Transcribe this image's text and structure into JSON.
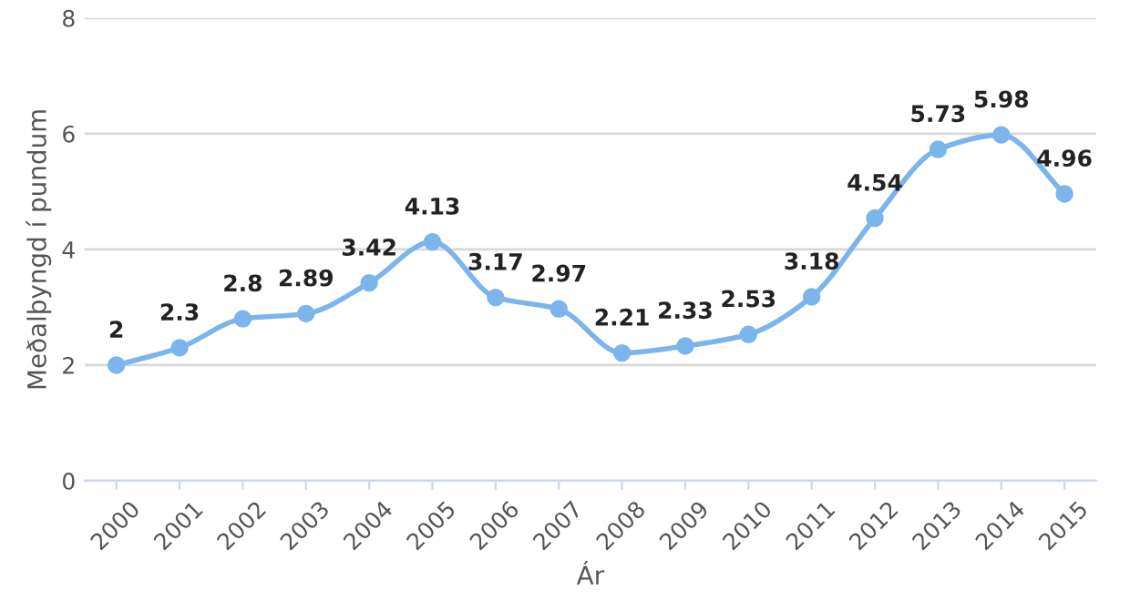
{
  "chart_data": {
    "type": "line",
    "xlabel": "Ár",
    "ylabel": "Meðalþyngd í pundum",
    "categories": [
      "2000",
      "2001",
      "2002",
      "2003",
      "2004",
      "2005",
      "2006",
      "2007",
      "2008",
      "2009",
      "2010",
      "2011",
      "2012",
      "2013",
      "2014",
      "2015"
    ],
    "series": [
      {
        "color": "#7cb5ec",
        "values": [
          2,
          2.3,
          2.8,
          2.89,
          3.42,
          4.13,
          3.17,
          2.97,
          2.21,
          2.33,
          2.53,
          3.18,
          4.54,
          5.73,
          5.98,
          4.96
        ]
      }
    ],
    "ylim": [
      0,
      8
    ],
    "yticks": [
      0,
      2,
      4,
      6,
      8
    ],
    "grid": "y",
    "marker": "circle",
    "line_style": "solid",
    "data_labels": true,
    "legend": false
  }
}
